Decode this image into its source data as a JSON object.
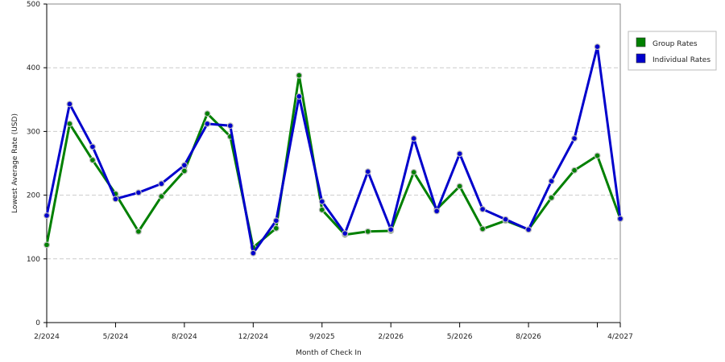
{
  "chart_data": {
    "type": "line",
    "title": "",
    "xlabel": "Month of Check In",
    "ylabel": "Lowest Average Rate (USD)",
    "ylim": [
      0,
      500
    ],
    "y_ticks": [
      "0",
      "100",
      "200",
      "300",
      "400",
      "500"
    ],
    "x_tick_labels": [
      {
        "i": 0,
        "label": "2/2024"
      },
      {
        "i": 3,
        "label": "5/2024"
      },
      {
        "i": 6,
        "label": "8/2024"
      },
      {
        "i": 9,
        "label": "12/2024"
      },
      {
        "i": 12,
        "label": "9/2025"
      },
      {
        "i": 15,
        "label": "2/2026"
      },
      {
        "i": 18,
        "label": "5/2026"
      },
      {
        "i": 21,
        "label": "8/2026"
      },
      {
        "i": 25,
        "label": "4/2027"
      }
    ],
    "grid": "horizontal-dashed",
    "legend_position": "right",
    "series": [
      {
        "name": "Group Rates",
        "color": "#008000",
        "values": [
          122,
          312,
          255,
          202,
          143,
          198,
          238,
          328,
          292,
          118,
          148,
          388,
          177,
          138,
          143,
          144,
          236,
          178,
          214,
          147,
          160,
          146,
          196,
          239,
          262,
          163
        ]
      },
      {
        "name": "Individual Rates",
        "color": "#0000cc",
        "values": [
          168,
          343,
          276,
          194,
          204,
          218,
          247,
          312,
          309,
          109,
          160,
          355,
          190,
          140,
          237,
          146,
          289,
          175,
          265,
          178,
          162,
          146,
          222,
          289,
          433,
          163
        ]
      }
    ]
  }
}
